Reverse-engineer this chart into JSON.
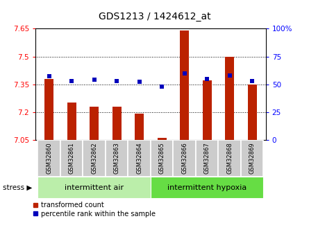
{
  "title": "GDS1213 / 1424612_at",
  "samples": [
    "GSM32860",
    "GSM32861",
    "GSM32862",
    "GSM32863",
    "GSM32864",
    "GSM32865",
    "GSM32866",
    "GSM32867",
    "GSM32868",
    "GSM32869"
  ],
  "transformed_count": [
    7.38,
    7.25,
    7.23,
    7.23,
    7.19,
    7.06,
    7.64,
    7.37,
    7.5,
    7.35
  ],
  "percentile_rank": [
    57,
    53,
    54,
    53,
    52,
    48,
    60,
    55,
    58,
    53
  ],
  "ylim_left": [
    7.05,
    7.65
  ],
  "ylim_right": [
    0,
    100
  ],
  "yticks_left": [
    7.05,
    7.2,
    7.35,
    7.5,
    7.65
  ],
  "yticks_right": [
    0,
    25,
    50,
    75,
    100
  ],
  "bar_color": "#bb2200",
  "dot_color": "#0000bb",
  "group1_label": "intermittent air",
  "group2_label": "intermittent hypoxia",
  "stress_label": "stress",
  "legend1": "transformed count",
  "legend2": "percentile rank within the sample",
  "bg_color_tick": "#cccccc",
  "group1_color": "#bbeeaa",
  "group2_color": "#66dd44",
  "base_value": 7.05,
  "bar_width": 0.4
}
